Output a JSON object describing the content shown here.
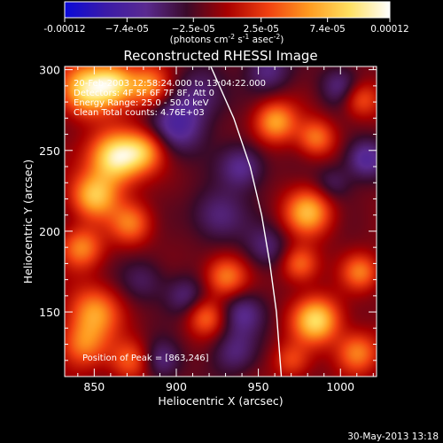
{
  "colorbar": {
    "tick_labels": [
      "-0.00012",
      "−7.4e-05",
      "−2.5e-05",
      "2.5e-05",
      "7.4e-05",
      "0.00012"
    ],
    "tick_values": [
      -0.00012,
      -7.4e-05,
      -2.5e-05,
      2.5e-05,
      7.4e-05,
      0.00012
    ],
    "range": [
      -0.00012,
      0.00012
    ],
    "unit_label": "(photons cm",
    "unit_sup1": "-2",
    "unit_mid": " s",
    "unit_sup2": "-1",
    "unit_mid2": " asec",
    "unit_sup3": "-2",
    "unit_end": ")",
    "colormap": [
      "#0a0ad8",
      "#3a1aa8",
      "#5a2a90",
      "#3a0a2a",
      "#a80000",
      "#f04010",
      "#ff9a20",
      "#ffe060",
      "#ffffff"
    ]
  },
  "chart_data": {
    "type": "heatmap",
    "title": "Reconstructed RHESSI Image",
    "xlabel": "Heliocentric X (arcsec)",
    "ylabel": "Heliocentric Y (arcsec)",
    "xlim": [
      832,
      1022
    ],
    "ylim": [
      110,
      302
    ],
    "x_ticks": [
      850,
      900,
      950,
      1000
    ],
    "y_ticks": [
      150,
      200,
      250,
      300
    ],
    "annotation_lines": [
      "20-Feb-2003 12:58:24.000 to 13:04:22.000",
      "Detectors: 4F 5F 6F 7F 8F, Att 0",
      "Energy Range: 25.0 - 50.0 keV",
      "Clean    Total counts: 4.76E+03"
    ],
    "peak_label": "Position of Peak = [863,246]",
    "peak_position": [
      863,
      246
    ],
    "limb_curve": [
      [
        921,
        302
      ],
      [
        935,
        270
      ],
      [
        945,
        240
      ],
      [
        952,
        210
      ],
      [
        957,
        180
      ],
      [
        961,
        150
      ],
      [
        964,
        110
      ]
    ],
    "blobs": [
      {
        "x": 863,
        "y": 246,
        "v": 1.0,
        "s": 11
      },
      {
        "x": 845,
        "y": 288,
        "v": 0.9,
        "s": 11
      },
      {
        "x": 862,
        "y": 292,
        "v": 0.7,
        "s": 9
      },
      {
        "x": 883,
        "y": 290,
        "v": 0.6,
        "s": 9
      },
      {
        "x": 850,
        "y": 222,
        "v": 0.75,
        "s": 10
      },
      {
        "x": 842,
        "y": 190,
        "v": 0.55,
        "s": 9
      },
      {
        "x": 872,
        "y": 205,
        "v": 0.5,
        "s": 9
      },
      {
        "x": 880,
        "y": 250,
        "v": 0.55,
        "s": 9
      },
      {
        "x": 850,
        "y": 150,
        "v": 0.6,
        "s": 11
      },
      {
        "x": 843,
        "y": 130,
        "v": 0.5,
        "s": 10
      },
      {
        "x": 872,
        "y": 120,
        "v": 0.45,
        "s": 9
      },
      {
        "x": 930,
        "y": 172,
        "v": 0.55,
        "s": 9
      },
      {
        "x": 918,
        "y": 147,
        "v": 0.45,
        "s": 8
      },
      {
        "x": 960,
        "y": 268,
        "v": 0.65,
        "s": 9
      },
      {
        "x": 985,
        "y": 258,
        "v": 0.5,
        "s": 8
      },
      {
        "x": 980,
        "y": 212,
        "v": 0.7,
        "s": 10
      },
      {
        "x": 975,
        "y": 180,
        "v": 0.5,
        "s": 8
      },
      {
        "x": 1012,
        "y": 175,
        "v": 0.5,
        "s": 8
      },
      {
        "x": 985,
        "y": 145,
        "v": 0.85,
        "s": 10
      },
      {
        "x": 1010,
        "y": 125,
        "v": 0.55,
        "s": 9
      },
      {
        "x": 970,
        "y": 120,
        "v": 0.35,
        "s": 8
      },
      {
        "x": 1012,
        "y": 282,
        "v": 0.45,
        "s": 8
      },
      {
        "x": 890,
        "y": 120,
        "v": -0.35,
        "s": 9
      },
      {
        "x": 900,
        "y": 265,
        "v": -0.45,
        "s": 12
      },
      {
        "x": 940,
        "y": 240,
        "v": -0.4,
        "s": 10
      },
      {
        "x": 925,
        "y": 210,
        "v": -0.35,
        "s": 12
      },
      {
        "x": 915,
        "y": 285,
        "v": -0.3,
        "s": 12
      },
      {
        "x": 955,
        "y": 300,
        "v": -0.35,
        "s": 10
      },
      {
        "x": 1000,
        "y": 290,
        "v": -0.35,
        "s": 9
      },
      {
        "x": 1015,
        "y": 245,
        "v": -0.45,
        "s": 9
      },
      {
        "x": 995,
        "y": 230,
        "v": -0.25,
        "s": 8
      },
      {
        "x": 940,
        "y": 150,
        "v": -0.35,
        "s": 10
      },
      {
        "x": 935,
        "y": 125,
        "v": -0.3,
        "s": 10
      },
      {
        "x": 955,
        "y": 190,
        "v": -0.3,
        "s": 10
      },
      {
        "x": 880,
        "y": 170,
        "v": -0.25,
        "s": 10
      },
      {
        "x": 905,
        "y": 160,
        "v": -0.3,
        "s": 9
      }
    ]
  },
  "footer": {
    "date": "30-May-2013 13:18"
  }
}
